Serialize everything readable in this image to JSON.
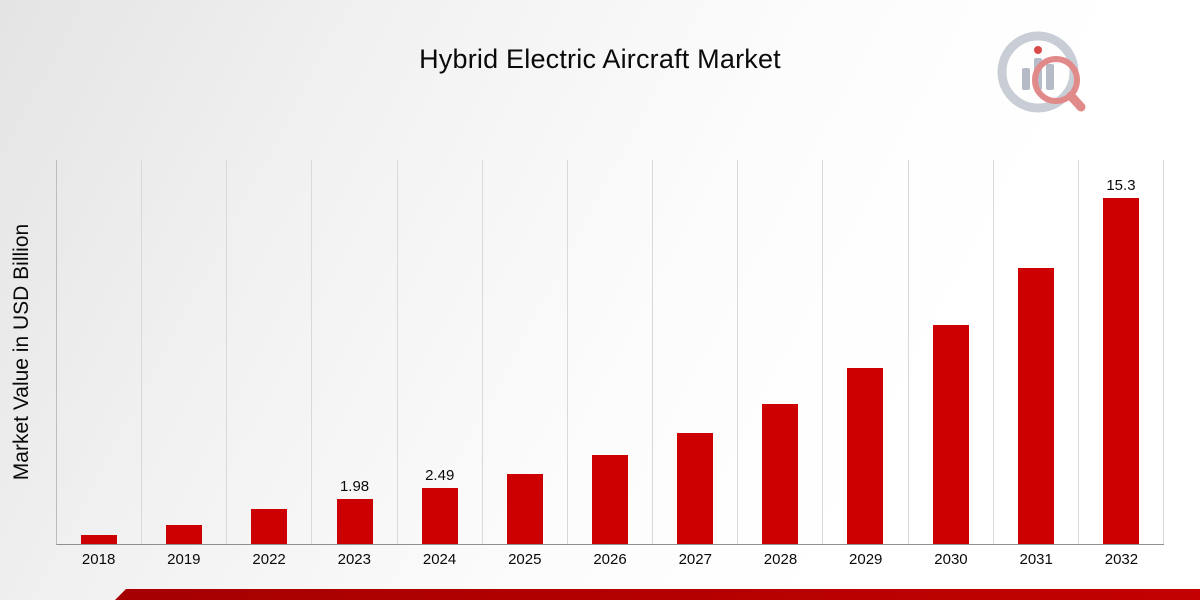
{
  "page": {
    "title": "Hybrid Electric Aircraft Market",
    "brand_logo": "bar-chart-magnifier-logo",
    "accent_color": "#C30101"
  },
  "chart_data": {
    "type": "bar",
    "title": "Hybrid Electric Aircraft Market",
    "xlabel": "",
    "ylabel": "Market Value in USD Billion",
    "ylim": [
      0,
      17
    ],
    "grid": "vertical-only",
    "legend": "none",
    "bar_color": "#CC0001",
    "categories": [
      "2018",
      "2019",
      "2022",
      "2023",
      "2024",
      "2025",
      "2026",
      "2027",
      "2028",
      "2029",
      "2030",
      "2031",
      "2032"
    ],
    "values": [
      0.4,
      0.85,
      1.55,
      1.98,
      2.49,
      3.1,
      3.95,
      4.9,
      6.2,
      7.8,
      9.7,
      12.2,
      15.3
    ],
    "data_labels": [
      "",
      "",
      "",
      "1.98",
      "2.49",
      "",
      "",
      "",
      "",
      "",
      "",
      "",
      "15.3"
    ]
  }
}
